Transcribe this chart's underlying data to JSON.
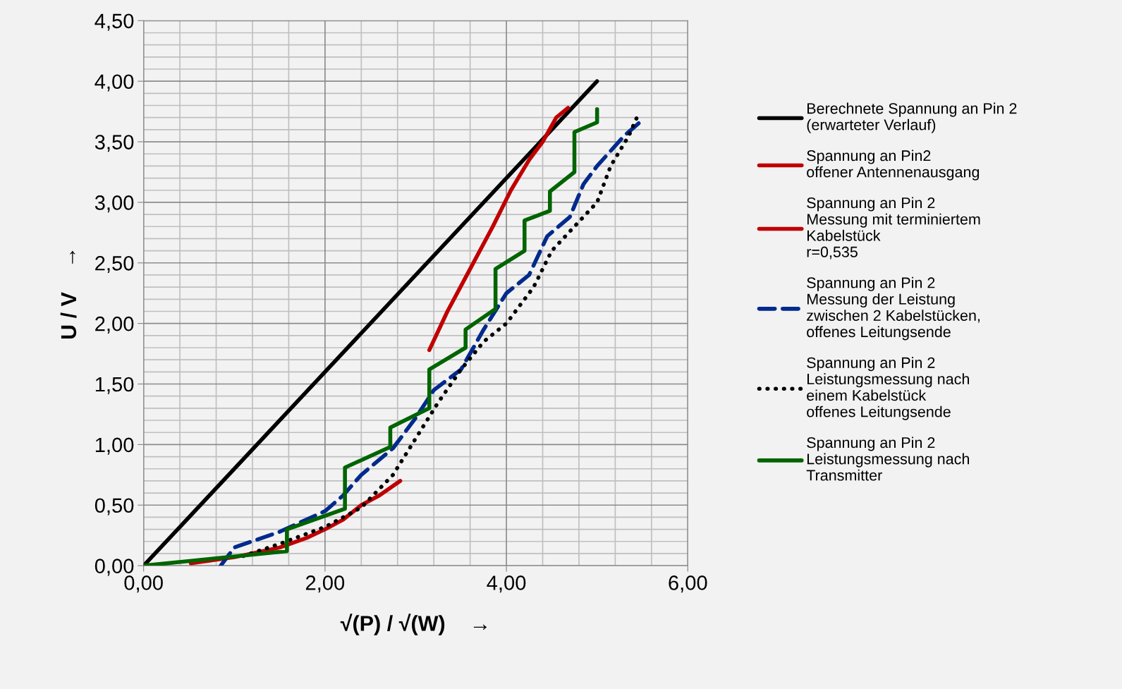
{
  "chart_data": {
    "type": "line",
    "xlabel": "√(P) / √(W)    →",
    "ylabel": "U / V    →",
    "xlim": [
      0,
      6
    ],
    "ylim": [
      0,
      4.5
    ],
    "xticks": [
      {
        "value": 0,
        "label": "0,00"
      },
      {
        "value": 2,
        "label": "2,00"
      },
      {
        "value": 4,
        "label": "4,00"
      },
      {
        "value": 6,
        "label": "6,00"
      }
    ],
    "yticks": [
      {
        "value": 0,
        "label": "0,00"
      },
      {
        "value": 0.5,
        "label": "0,50"
      },
      {
        "value": 1,
        "label": "1,00"
      },
      {
        "value": 1.5,
        "label": "1,50"
      },
      {
        "value": 2,
        "label": "2,00"
      },
      {
        "value": 2.5,
        "label": "2,50"
      },
      {
        "value": 3,
        "label": "3,00"
      },
      {
        "value": 3.5,
        "label": "3,50"
      },
      {
        "value": 4,
        "label": "4,00"
      },
      {
        "value": 4.5,
        "label": "4,50"
      }
    ],
    "grid": true,
    "legend": "right",
    "marker": "none",
    "series": [
      {
        "name": "Berechnete Spannung an Pin 2\n(erwarteter Verlauf)",
        "color": "#000000",
        "line_style": "solid",
        "x": [
          0,
          5
        ],
        "values": [
          0,
          4.0
        ]
      },
      {
        "name": "Spannung an Pin2\noffener Antennenausgang",
        "color": "#c00000",
        "line_style": "solid",
        "x": [
          3.15,
          3.35,
          3.6,
          3.85,
          4.05,
          4.25,
          4.4,
          4.55,
          4.68
        ],
        "values": [
          1.78,
          2.1,
          2.45,
          2.8,
          3.1,
          3.35,
          3.5,
          3.7,
          3.78
        ]
      },
      {
        "name": "Spannung an Pin 2\nMessung mit terminiertem\nKabelstück\nr=0,535",
        "color": "#c00000",
        "line_style": "solid",
        "x": [
          0.52,
          1.0,
          1.5,
          1.8,
          2.0,
          2.2,
          2.4,
          2.6,
          2.83
        ],
        "values": [
          0.02,
          0.07,
          0.15,
          0.23,
          0.3,
          0.38,
          0.5,
          0.58,
          0.7
        ]
      },
      {
        "name": "Spannung an Pin 2\nMessung der Leistung\nzwischen 2 Kabelstücken,\noffenes Leitungsende",
        "color": "#002a8c",
        "line_style": "dashed",
        "x": [
          0.85,
          1.0,
          1.5,
          2.0,
          2.2,
          2.4,
          2.75,
          3.0,
          3.2,
          3.5,
          3.75,
          4.0,
          4.25,
          4.45,
          4.7,
          4.85,
          5.0,
          5.3,
          5.5
        ],
        "values": [
          0,
          0.15,
          0.28,
          0.45,
          0.58,
          0.75,
          0.97,
          1.22,
          1.45,
          1.62,
          1.95,
          2.25,
          2.4,
          2.72,
          2.88,
          3.15,
          3.3,
          3.55,
          3.68
        ]
      },
      {
        "name": "Spannung an Pin 2\nLeistungsmessung nach\neinem Kabelstück\noffenes Leitungsende",
        "color": "#000000",
        "line_style": "dotted",
        "x": [
          1.1,
          1.5,
          2.0,
          2.4,
          2.75,
          3.0,
          3.25,
          3.5,
          3.75,
          4.0,
          4.3,
          4.5,
          4.75,
          5.0,
          5.15,
          5.35,
          5.45
        ],
        "values": [
          0.08,
          0.18,
          0.32,
          0.48,
          0.75,
          1.05,
          1.35,
          1.62,
          1.85,
          2.0,
          2.3,
          2.6,
          2.8,
          3.0,
          3.3,
          3.55,
          3.72
        ]
      },
      {
        "name": "Spannung an Pin 2\nLeistungsmessung nach\nTransmitter",
        "color": "#006400",
        "line_style": "solid",
        "x": [
          0,
          1.58,
          1.58,
          2.22,
          2.22,
          2.72,
          2.72,
          3.15,
          3.15,
          3.55,
          3.55,
          3.88,
          3.88,
          4.2,
          4.2,
          4.48,
          4.48,
          4.75,
          4.75,
          5.0,
          5.0
        ],
        "values": [
          0,
          0.12,
          0.3,
          0.47,
          0.81,
          0.98,
          1.14,
          1.3,
          1.62,
          1.8,
          1.95,
          2.12,
          2.45,
          2.6,
          2.85,
          2.93,
          3.09,
          3.25,
          3.58,
          3.66,
          3.77
        ]
      }
    ]
  }
}
